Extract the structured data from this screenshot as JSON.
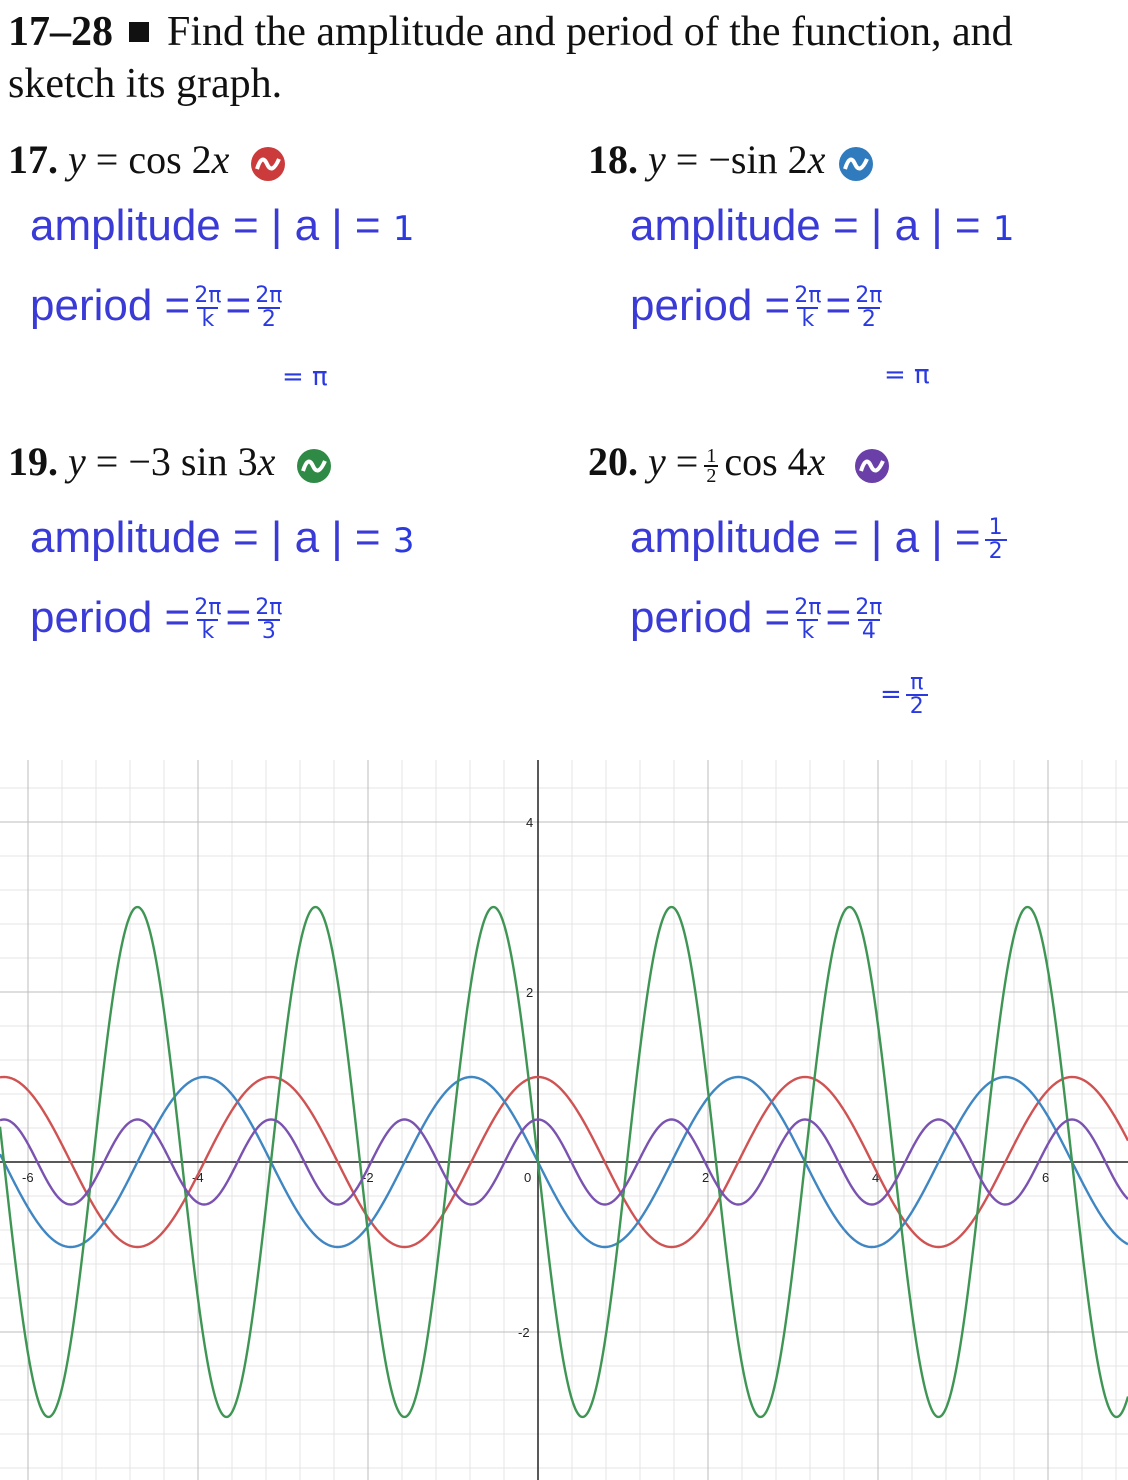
{
  "header": {
    "range": "17–28",
    "text": "Find the amplitude and period of the function, and sketch its graph."
  },
  "problems": [
    {
      "num": "17.",
      "lhs": "y",
      "eq": "=",
      "pre": "",
      "func": "cos 2",
      "var": "x",
      "color": "#cc3b3b",
      "amp_label": "amplitude = | a | =",
      "amp_value": "1",
      "period_label": "period =",
      "p1_num": "2π",
      "p1_den": "k",
      "p2_num": "2π",
      "p2_den": "2",
      "result": "= π"
    },
    {
      "num": "18.",
      "lhs": "y",
      "eq": "=",
      "pre": "",
      "func": "−sin 2",
      "var": "x",
      "color": "#2f7bbd",
      "amp_label": "amplitude = | a | =",
      "amp_value": "1",
      "period_label": "period =",
      "p1_num": "2π",
      "p1_den": "k",
      "p2_num": "2π",
      "p2_den": "2",
      "result": "= π"
    },
    {
      "num": "19.",
      "lhs": "y",
      "eq": "=",
      "pre": "",
      "func": "−3 sin 3",
      "var": "x",
      "color": "#2f8a45",
      "amp_label": "amplitude = | a | =",
      "amp_value": "3",
      "period_label": "period =",
      "p1_num": "2π",
      "p1_den": "k",
      "p2_num": "2π",
      "p2_den": "3",
      "result": ""
    },
    {
      "num": "20.",
      "lhs": "y",
      "eq": "=",
      "frac_num": "1",
      "frac_den": "2",
      "func": "cos 4",
      "var": "x",
      "color": "#6a3fa8",
      "amp_label": "amplitude = | a | =",
      "amp_value_num": "1",
      "amp_value_den": "2",
      "period_label": "period =",
      "p1_num": "2π",
      "p1_den": "k",
      "p2_num": "2π",
      "p2_den": "4",
      "result_pre": "=",
      "result_num": "π",
      "result_den": "2"
    }
  ],
  "chart_data": {
    "type": "line",
    "xlim": [
      -6.3,
      7.0
    ],
    "ylim": [
      -3.8,
      4.4
    ],
    "grid": true,
    "x_ticks": [
      "-6",
      "-4",
      "-2",
      "0",
      "2",
      "4",
      "6"
    ],
    "y_ticks": [
      "4",
      "2",
      "-2"
    ],
    "series": [
      {
        "function": "cos(2x)",
        "amplitude": 1,
        "k": 2,
        "color": "#d05353"
      },
      {
        "function": "-sin(2x)",
        "amplitude": 1,
        "k": 2,
        "color": "#3f86c2"
      },
      {
        "function": "-3sin(3x)",
        "amplitude": 3,
        "k": 3,
        "color": "#3f9654"
      },
      {
        "function": "0.5cos(4x)",
        "amplitude": 0.5,
        "k": 4,
        "color": "#7a52b0"
      }
    ]
  }
}
